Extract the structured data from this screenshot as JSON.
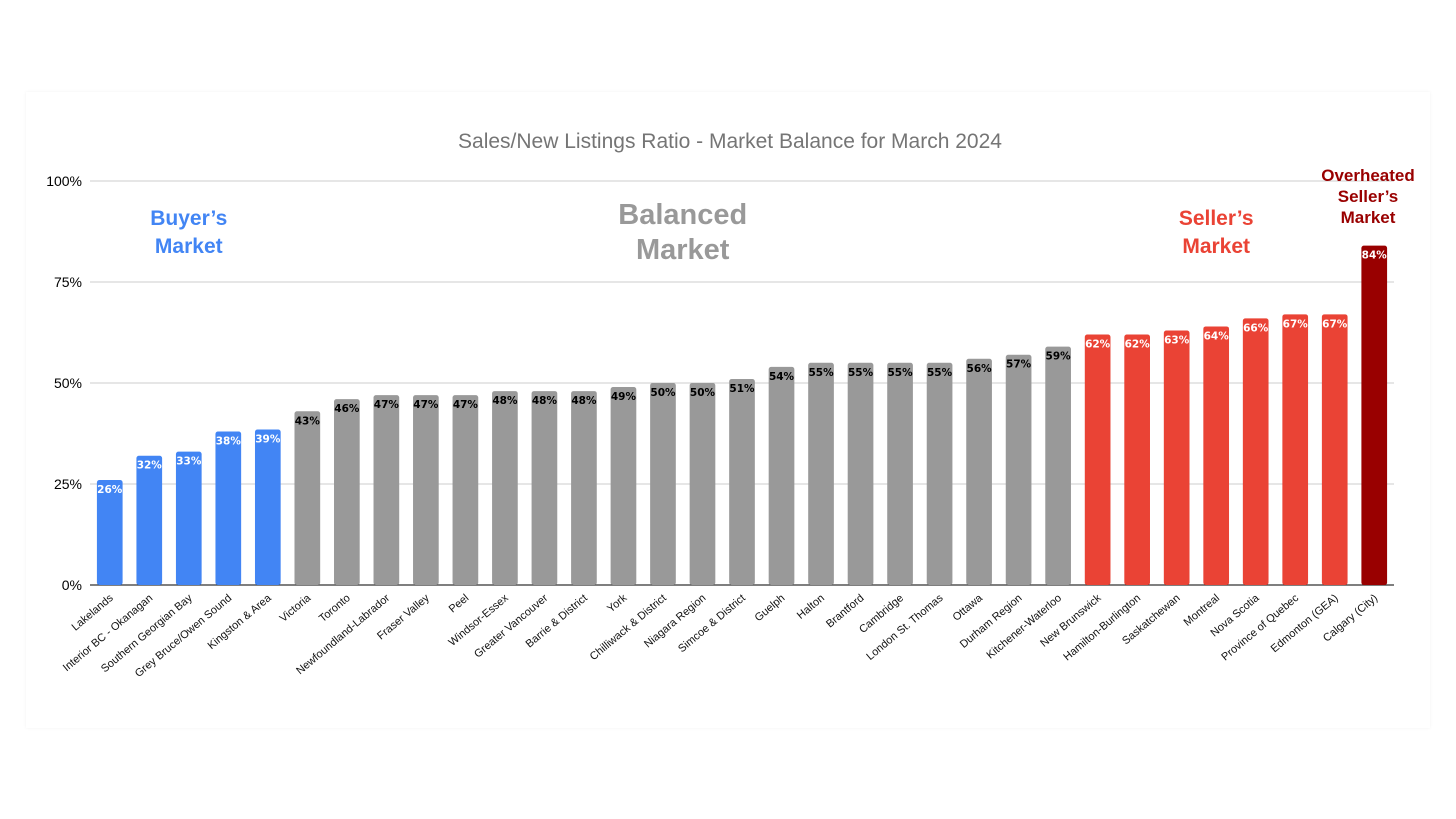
{
  "chart_data": {
    "type": "bar",
    "title": "Sales/New Listings Ratio - Market Balance for March 2024",
    "xlabel": "",
    "ylabel": "",
    "ylim": [
      0,
      100
    ],
    "yticks": [
      "0%",
      "25%",
      "50%",
      "75%",
      "100%"
    ],
    "grid": true,
    "categories": [
      "Lakelands",
      "Interior BC - Okanagan",
      "Southern Georgian Bay",
      "Grey Bruce/Owen Sound",
      "Kingston & Area",
      "Victoria",
      "Toronto",
      "Newfoundland-Labrador",
      "Fraser Valley",
      "Peel",
      "Windsor-Essex",
      "Greater Vancouver",
      "Barrie & District",
      "York",
      "Chilliwack & District",
      "Niagara Region",
      "Simcoe & District",
      "Guelph",
      "Halton",
      "Brantford",
      "Cambridge",
      "London St. Thomas",
      "Ottawa",
      "Durham Region",
      "Kitchener-Waterloo",
      "New Brunswick",
      "Hamilton-Burlington",
      "Saskatchewan",
      "Montreal",
      "Nova Scotia",
      "Province of Quebec",
      "Edmonton (GEA)",
      "Calgary (City)"
    ],
    "values": [
      26,
      32,
      33,
      38,
      38.5,
      43,
      46,
      47,
      47,
      47,
      48,
      48,
      48,
      49,
      50,
      50,
      51,
      54,
      55,
      55,
      55,
      55,
      56,
      57,
      59,
      62,
      62,
      63,
      64,
      66,
      67,
      67,
      84
    ],
    "data_labels": [
      "26%",
      "32%",
      "33%",
      "38%",
      "39%",
      "43%",
      "46%",
      "47%",
      "47%",
      "47%",
      "48%",
      "48%",
      "48%",
      "49%",
      "50%",
      "50%",
      "51%",
      "54%",
      "55%",
      "55%",
      "55%",
      "55%",
      "56%",
      "57%",
      "59%",
      "62%",
      "62%",
      "63%",
      "64%",
      "66%",
      "67%",
      "67%",
      "84%"
    ],
    "bar_zones": [
      "buyer",
      "buyer",
      "buyer",
      "buyer",
      "buyer",
      "balanced",
      "balanced",
      "balanced",
      "balanced",
      "balanced",
      "balanced",
      "balanced",
      "balanced",
      "balanced",
      "balanced",
      "balanced",
      "balanced",
      "balanced",
      "balanced",
      "balanced",
      "balanced",
      "balanced",
      "balanced",
      "balanced",
      "balanced",
      "seller",
      "seller",
      "seller",
      "seller",
      "seller",
      "seller",
      "seller",
      "overheated"
    ],
    "zones": {
      "buyer": {
        "lines": [
          "Buyer’s",
          "Market"
        ],
        "color": "#4285f4",
        "label_color": "#ffffff"
      },
      "balanced": {
        "lines": [
          "Balanced",
          "Market"
        ],
        "color": "#999999",
        "label_color": "#000000"
      },
      "seller": {
        "lines": [
          "Seller’s",
          "Market"
        ],
        "color": "#ea4335",
        "label_color": "#ffffff"
      },
      "overheated": {
        "lines": [
          "Overheated",
          "Seller’s",
          "Market"
        ],
        "color": "#990000",
        "label_color": "#ffffff"
      }
    },
    "colors": {
      "gridline": "#cccccc",
      "axis": "#333333",
      "title": "#757575"
    }
  }
}
